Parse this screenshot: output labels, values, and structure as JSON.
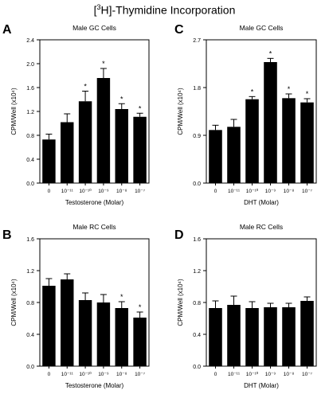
{
  "title": "[3H]-Thymidine Incorporation",
  "title_parts": {
    "bracket_open": "[",
    "superscript": "3",
    "rest": "H]-Thymidine Incorporation"
  },
  "chart_data": [
    {
      "panel_label": "A",
      "type": "bar",
      "title": "Male GC Cells",
      "xlabel": "Testosterone (Molar)",
      "ylabel": "CPM/Well (x10⁴)",
      "categories": [
        "0",
        "10⁻¹¹",
        "10⁻¹⁰",
        "10⁻⁹",
        "10⁻⁸",
        "10⁻⁷"
      ],
      "values": [
        0.73,
        1.02,
        1.37,
        1.76,
        1.24,
        1.11
      ],
      "errors": [
        0.09,
        0.14,
        0.17,
        0.16,
        0.09,
        0.06
      ],
      "significant": [
        false,
        false,
        true,
        true,
        true,
        true
      ],
      "ylim": [
        0,
        2.4
      ],
      "yticks": [
        "0.0",
        "0.4",
        "0.8",
        "1.2",
        "1.6",
        "2.0",
        "2.4"
      ],
      "grid": false,
      "bar_color": "#000000"
    },
    {
      "panel_label": "C",
      "type": "bar",
      "title": "Male GC Cells",
      "xlabel": "DHT (Molar)",
      "ylabel": "CPM/Well (x10⁴)",
      "categories": [
        "0",
        "10⁻¹¹",
        "10⁻¹⁰",
        "10⁻⁹",
        "10⁻⁸",
        "10⁻⁷"
      ],
      "values": [
        1.0,
        1.06,
        1.58,
        2.28,
        1.6,
        1.52
      ],
      "errors": [
        0.09,
        0.14,
        0.05,
        0.07,
        0.08,
        0.07
      ],
      "significant": [
        false,
        false,
        true,
        true,
        true,
        true
      ],
      "ylim": [
        0,
        2.7
      ],
      "yticks": [
        "0.0",
        "0.9",
        "1.8",
        "2.7"
      ],
      "grid": false,
      "bar_color": "#000000"
    },
    {
      "panel_label": "B",
      "type": "bar",
      "title": "Male RC Cells",
      "xlabel": "Testosterone (Molar)",
      "ylabel": "CPM/Well (x10⁴)",
      "categories": [
        "0",
        "10⁻¹¹",
        "10⁻¹⁰",
        "10⁻⁹",
        "10⁻⁸",
        "10⁻⁷"
      ],
      "values": [
        1.01,
        1.09,
        0.83,
        0.8,
        0.73,
        0.61
      ],
      "errors": [
        0.09,
        0.07,
        0.09,
        0.1,
        0.08,
        0.07
      ],
      "significant": [
        false,
        false,
        false,
        false,
        true,
        true
      ],
      "ylim": [
        0,
        1.6
      ],
      "yticks": [
        "0.0",
        "0.4",
        "0.8",
        "1.2",
        "1.6"
      ],
      "grid": false,
      "bar_color": "#000000"
    },
    {
      "panel_label": "D",
      "type": "bar",
      "title": "Male RC Cells",
      "xlabel": "DHT (Molar)",
      "ylabel": "CPM/Well (x10⁴)",
      "categories": [
        "0",
        "10⁻¹¹",
        "10⁻¹⁰",
        "10⁻⁹",
        "10⁻⁸",
        "10⁻⁷"
      ],
      "values": [
        0.73,
        0.77,
        0.73,
        0.74,
        0.74,
        0.82
      ],
      "errors": [
        0.09,
        0.11,
        0.08,
        0.05,
        0.05,
        0.05
      ],
      "significant": [
        false,
        false,
        false,
        false,
        false,
        false
      ],
      "ylim": [
        0,
        1.6
      ],
      "yticks": [
        "0.0",
        "0.4",
        "0.8",
        "1.2",
        "1.6"
      ],
      "grid": false,
      "bar_color": "#000000"
    }
  ],
  "significance_marker": "*"
}
